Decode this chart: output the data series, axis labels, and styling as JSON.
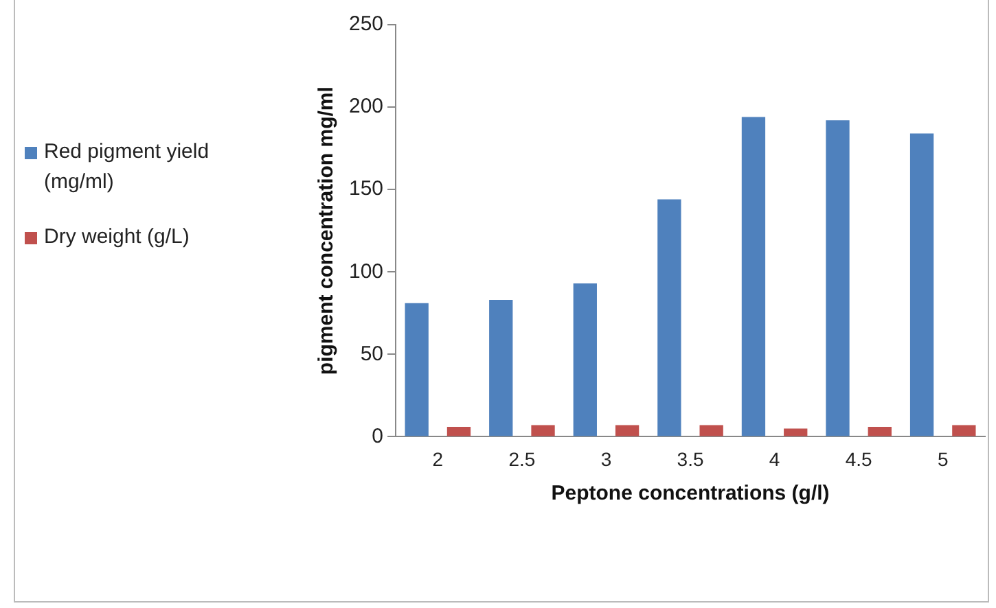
{
  "chart_data": {
    "type": "bar",
    "xlabel": "Peptone concentrations (g/l)",
    "ylabel": "pigment concentration mg/ml",
    "categories": [
      "2",
      "2.5",
      "3",
      "3.5",
      "4",
      "4.5",
      "5"
    ],
    "series": [
      {
        "name": "Red pigment yield (mg/ml)",
        "color": "#4f81bd",
        "values": [
          81,
          83,
          93,
          144,
          194,
          192,
          184
        ]
      },
      {
        "name": "Dry weight (g/L)",
        "color": "#c0504d",
        "values": [
          6,
          7,
          7,
          7,
          5,
          6,
          7
        ]
      }
    ],
    "ylim": [
      0,
      250
    ],
    "yticks": [
      0,
      50,
      100,
      150,
      200,
      250
    ],
    "grid": false,
    "legend": "left"
  }
}
